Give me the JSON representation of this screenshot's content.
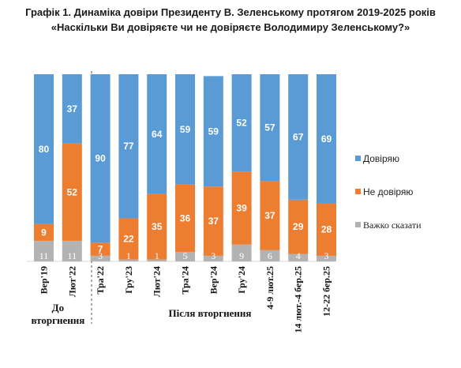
{
  "title_line1": "Графік 1. Динаміка довіри Президенту В. Зеленському протягом 2019-2025 років",
  "title_line2": "«Наскільки Ви довіряєте чи не довіряєте Володимиру Зеленському?»",
  "chart_data": {
    "type": "bar",
    "stacked": true,
    "percent": true,
    "categories": [
      "Вер'19",
      "Лют'22",
      "Тра'22",
      "Гру'23",
      "Лют'24",
      "Тра'24",
      "Вер'24",
      "Гру'24",
      "4-9 лют.25",
      "14 лют.-4 бер.25",
      "12-22 бер.25"
    ],
    "series": [
      {
        "name": "Важко сказати",
        "color": "#b3b3b3",
        "values": [
          11,
          11,
          3,
          1,
          1,
          5,
          3,
          9,
          6,
          4,
          3
        ]
      },
      {
        "name": "Не довіряю",
        "color": "#ed7d31",
        "values": [
          9,
          52,
          7,
          22,
          35,
          36,
          37,
          39,
          37,
          29,
          28
        ]
      },
      {
        "name": "Довіряю",
        "color": "#5b9bd5",
        "values": [
          80,
          37,
          90,
          77,
          64,
          59,
          59,
          52,
          57,
          67,
          69
        ]
      }
    ],
    "ylim": [
      0,
      100
    ],
    "groups": [
      {
        "label_line1": "До",
        "label_line2": "вторгнення",
        "categories": [
          "Вер'19",
          "Лют'22"
        ]
      },
      {
        "label_line1": "Після вторгнення",
        "label_line2": "",
        "categories": [
          "Тра'22",
          "Гру'23",
          "Лют'24",
          "Тра'24",
          "Вер'24",
          "Гру'24",
          "4-9 лют.25",
          "14 лют.-4 бер.25",
          "12-22 бер.25"
        ]
      }
    ],
    "legend": {
      "position": "right",
      "order": [
        "Довіряю",
        "Не довіряю",
        "Важко сказати"
      ]
    },
    "grid": false
  }
}
